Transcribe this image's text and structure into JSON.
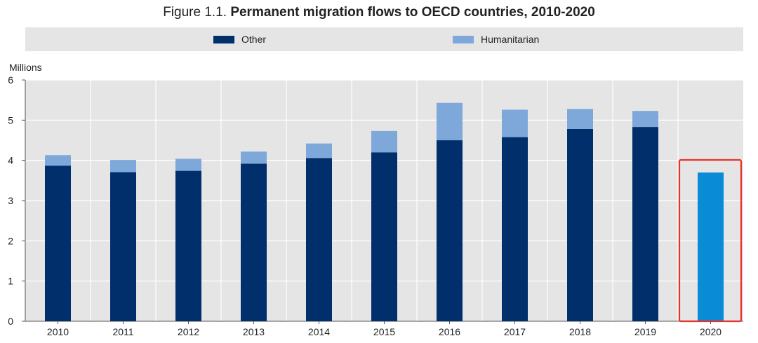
{
  "title": {
    "prefix": "Figure 1.1.",
    "main": "Permanent migration flows to OECD countries, 2010-2020"
  },
  "chart_data": {
    "type": "bar",
    "stacked": true,
    "title": "Permanent migration flows to OECD countries, 2010-2020",
    "ylabel": "Millions",
    "ylim": [
      0,
      6
    ],
    "yticks": [
      "0",
      "1",
      "2",
      "3",
      "4",
      "5",
      "6"
    ],
    "categories": [
      "2010",
      "2011",
      "2012",
      "2013",
      "2014",
      "2015",
      "2016",
      "2017",
      "2018",
      "2019",
      "2020"
    ],
    "series": [
      {
        "name": "Other",
        "color": "#002f6c",
        "values": [
          3.87,
          3.71,
          3.74,
          3.92,
          4.06,
          4.2,
          4.5,
          4.58,
          4.78,
          4.83,
          null
        ]
      },
      {
        "name": "Humanitarian",
        "color": "#7fa8da",
        "values": [
          0.26,
          0.3,
          0.3,
          0.3,
          0.36,
          0.53,
          0.93,
          0.68,
          0.5,
          0.4,
          null
        ]
      }
    ],
    "totals_only": [
      {
        "category": "2020",
        "value": 3.7,
        "color": "#0a8bd6",
        "highlighted": true
      }
    ],
    "highlight_box_color": "#e8322c",
    "legend": [
      "Other",
      "Humanitarian"
    ],
    "legend_position": "top"
  }
}
